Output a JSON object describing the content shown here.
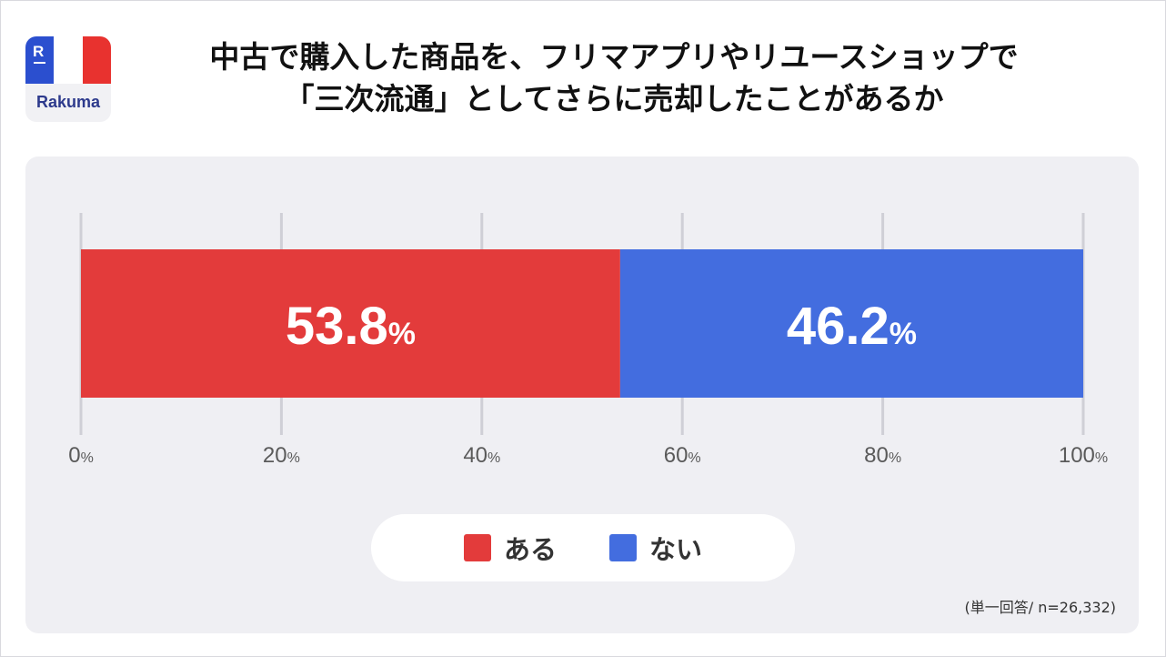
{
  "logo": {
    "brand": "Rakuma",
    "mark": "R"
  },
  "title_lines": [
    "中古で購入した商品を、フリマアプリやリユースショップで",
    "「三次流通」としてさらに売却したことがあるか"
  ],
  "note": "(単一回答/ n=26,332)",
  "colors": {
    "yes": "#e33b3b",
    "no": "#436ddf",
    "grid": "#cfcfd6",
    "tick_text": "#5a5a5a"
  },
  "chart_data": {
    "type": "bar",
    "orientation": "horizontal-stacked",
    "unit": "%",
    "xlim": [
      0,
      100
    ],
    "ticks": [
      {
        "value": 0,
        "label": "0"
      },
      {
        "value": 20,
        "label": "20"
      },
      {
        "value": 40,
        "label": "40"
      },
      {
        "value": 60,
        "label": "60"
      },
      {
        "value": 80,
        "label": "80"
      },
      {
        "value": 100,
        "label": "100"
      }
    ],
    "series": [
      {
        "name": "ある",
        "value": 53.8,
        "label": "53.8",
        "color": "#e33b3b"
      },
      {
        "name": "ない",
        "value": 46.2,
        "label": "46.2",
        "color": "#436ddf"
      }
    ],
    "grid": true,
    "legend": "bottom-center"
  }
}
